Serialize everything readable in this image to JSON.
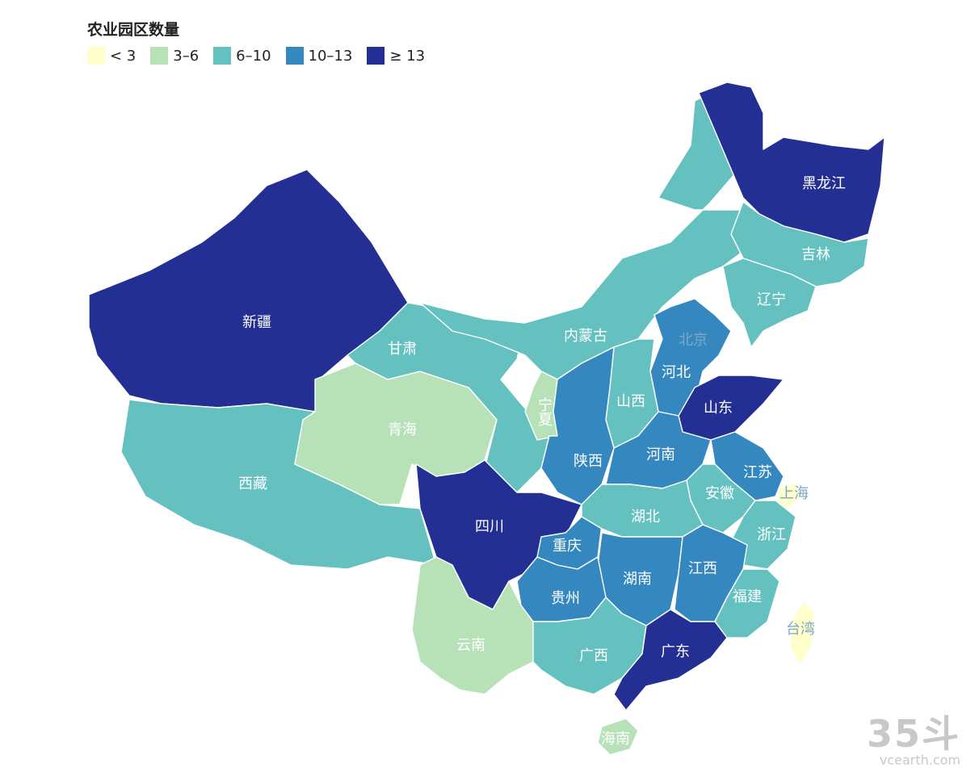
{
  "title": "农业园区数量",
  "legend": [
    {
      "label": "< 3",
      "color": "#ffffcc",
      "class": "lt3"
    },
    {
      "label": "3–6",
      "color": "#b7e2b8",
      "class": "c3_6"
    },
    {
      "label": "6–10",
      "color": "#64c1c0",
      "class": "c6_10"
    },
    {
      "label": "10–13",
      "color": "#3488bf",
      "class": "c10_13"
    },
    {
      "label": "≥ 13",
      "color": "#232f92",
      "class": "ge13"
    }
  ],
  "provinces": [
    {
      "name": "黑龙江",
      "class": "ge13"
    },
    {
      "name": "吉林",
      "class": "c6_10"
    },
    {
      "name": "辽宁",
      "class": "c6_10"
    },
    {
      "name": "内蒙古",
      "class": "c6_10"
    },
    {
      "name": "新疆",
      "class": "ge13"
    },
    {
      "name": "甘肃",
      "class": "c6_10"
    },
    {
      "name": "青海",
      "class": "c3_6"
    },
    {
      "name": "西藏",
      "class": "c6_10"
    },
    {
      "name": "宁夏",
      "class": "c3_6"
    },
    {
      "name": "北京",
      "class": "c3_6"
    },
    {
      "name": "河北",
      "class": "c10_13"
    },
    {
      "name": "山西",
      "class": "c6_10"
    },
    {
      "name": "山东",
      "class": "ge13"
    },
    {
      "name": "陕西",
      "class": "c10_13"
    },
    {
      "name": "河南",
      "class": "c10_13"
    },
    {
      "name": "江苏",
      "class": "c10_13"
    },
    {
      "name": "上海",
      "class": "lt3"
    },
    {
      "name": "安徽",
      "class": "c6_10"
    },
    {
      "name": "四川",
      "class": "ge13"
    },
    {
      "name": "重庆",
      "class": "c10_13"
    },
    {
      "name": "湖北",
      "class": "c6_10"
    },
    {
      "name": "浙江",
      "class": "c6_10"
    },
    {
      "name": "湖南",
      "class": "c10_13"
    },
    {
      "name": "江西",
      "class": "c10_13"
    },
    {
      "name": "贵州",
      "class": "c10_13"
    },
    {
      "name": "福建",
      "class": "c6_10"
    },
    {
      "name": "台湾",
      "class": "lt3"
    },
    {
      "name": "云南",
      "class": "c3_6"
    },
    {
      "name": "广西",
      "class": "c6_10"
    },
    {
      "name": "广东",
      "class": "ge13"
    },
    {
      "name": "海南",
      "class": "c3_6"
    }
  ],
  "watermark": {
    "logo": "35斗",
    "url": "vcearth.com"
  }
}
